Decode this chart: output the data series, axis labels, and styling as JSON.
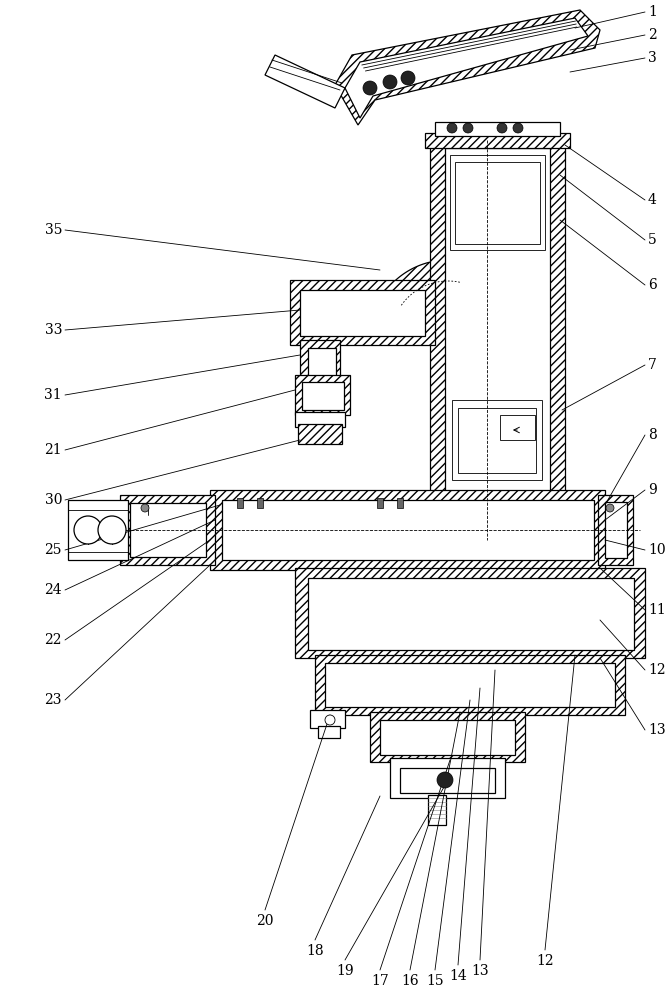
{
  "background_color": "#ffffff",
  "line_color": "#000000",
  "label_color": "#000000",
  "fig_width": 6.68,
  "fig_height": 10.0,
  "dpi": 100,
  "title": ""
}
